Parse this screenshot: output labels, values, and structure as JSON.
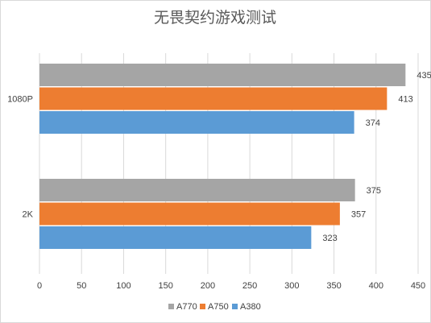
{
  "chart_data": {
    "type": "bar",
    "orientation": "horizontal",
    "title": "无畏契约游戏测试",
    "categories": [
      "1080P",
      "2K"
    ],
    "series": [
      {
        "name": "A770",
        "color": "#a5a5a5",
        "values": [
          435,
          375
        ]
      },
      {
        "name": "A750",
        "color": "#ed7d31",
        "values": [
          413,
          357
        ]
      },
      {
        "name": "A380",
        "color": "#5b9bd5",
        "values": [
          374,
          323
        ]
      }
    ],
    "xlim": [
      0,
      450
    ],
    "xticks": [
      0,
      50,
      100,
      150,
      200,
      250,
      300,
      350,
      400,
      450
    ],
    "grid": true,
    "legend_position": "bottom",
    "gridline_color": "#d9d9d9"
  }
}
